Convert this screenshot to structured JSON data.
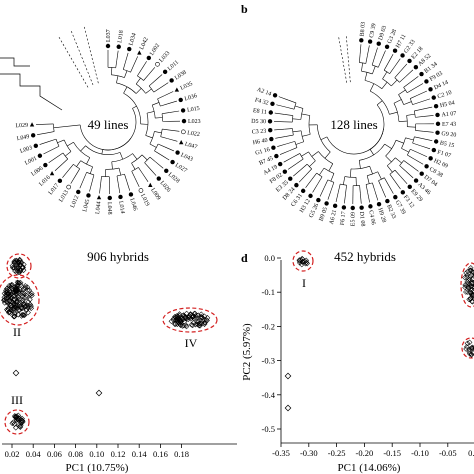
{
  "figure": {
    "panel_a": {
      "center_label": "49 lines",
      "tip_labels": [
        "L037",
        "L018",
        "L034",
        "L042",
        "L002",
        "L033",
        "L011",
        "L038",
        "L035",
        "L036",
        "L015",
        "L023",
        "L022",
        "L047",
        "L043",
        "L027",
        "L028",
        "L026",
        "L009",
        "L019",
        "L046",
        "L014",
        "L048",
        "L044",
        "L045",
        "L012",
        "L013",
        "L017",
        "L016",
        "L006",
        "L001",
        "L003",
        "L049",
        "L029"
      ]
    },
    "panel_b": {
      "letter": "b",
      "center_label": "128 lines",
      "tip_labels": [
        "B8 03",
        "C9 39",
        "D9 03",
        "G3 28",
        "H7 11",
        "G2 33",
        "E2 18",
        "A8 52",
        "B1 34",
        "F9 03",
        "D4 14",
        "C2 10",
        "H5 04",
        "A1 07",
        "E7 43",
        "G9 20",
        "B5 15",
        "F1 07",
        "H2 09",
        "C8 38",
        "D7 04",
        "A3 46",
        "E9 29",
        "F3 12",
        "G7 39",
        "B2 33",
        "H9 28",
        "C4 06",
        "D1 08",
        "E5 09",
        "F6 17",
        "A6 21",
        "B9 05",
        "G5 26",
        "H3 12",
        "C6 31",
        "D8 24",
        "E3 35",
        "F8 02",
        "A4 19",
        "B7 45",
        "G1 16",
        "H6 40",
        "C3 23",
        "D5 30",
        "E8 11",
        "F4 32",
        "A2 14"
      ]
    },
    "panel_c": {
      "title": "906 hybrids",
      "x_label": "PC1 (10.75%)",
      "x_ticks": [
        "0.02",
        "0.04",
        "0.06",
        "0.08",
        "0.10",
        "0.12",
        "0.14",
        "0.16",
        "0.18"
      ],
      "groups": [
        "I",
        "II",
        "III",
        "IV"
      ]
    },
    "panel_d": {
      "letter": "d",
      "title": "452 hybrids",
      "x_label": "PC1 (14.06%)",
      "y_label": "PC2 (5.97%)",
      "x_ticks": [
        "-0.35",
        "-0.30",
        "-0.25",
        "-0.20",
        "-0.15",
        "-0.10",
        "-0.05",
        "0.00"
      ],
      "y_ticks": [
        "0.0",
        "-0.1",
        "-0.2",
        "-0.3",
        "-0.4",
        "-0.5"
      ],
      "groups": [
        "I"
      ]
    }
  },
  "chart_data": [
    {
      "type": "scatter",
      "title": "906 hybrids",
      "xlabel": "PC1 (10.75%)",
      "ylabel": "",
      "xlim": [
        0.0,
        0.19
      ],
      "groups": [
        {
          "label": "I",
          "cx": 0.0125,
          "cy": 0.93
        },
        {
          "label": "II",
          "cx": 0.01,
          "cy": 0.6
        },
        {
          "label": "III",
          "cx": 0.01,
          "cy": 0.05
        },
        {
          "label": "IV",
          "cx": 0.155,
          "cy": 0.6
        }
      ],
      "points": [
        [
          0.01,
          0.33
        ],
        [
          0.07,
          0.18
        ]
      ]
    },
    {
      "type": "scatter",
      "title": "452 hybrids",
      "xlabel": "PC1 (14.06%)",
      "ylabel": "PC2 (5.97%)",
      "xlim": [
        -0.35,
        0.0
      ],
      "ylim": [
        -0.5,
        0.05
      ],
      "groups": [
        {
          "label": "I",
          "cx": -0.3,
          "cy": -0.01
        }
      ],
      "points": [
        [
          -0.33,
          -0.23
        ],
        [
          -0.32,
          -0.35
        ]
      ]
    }
  ]
}
